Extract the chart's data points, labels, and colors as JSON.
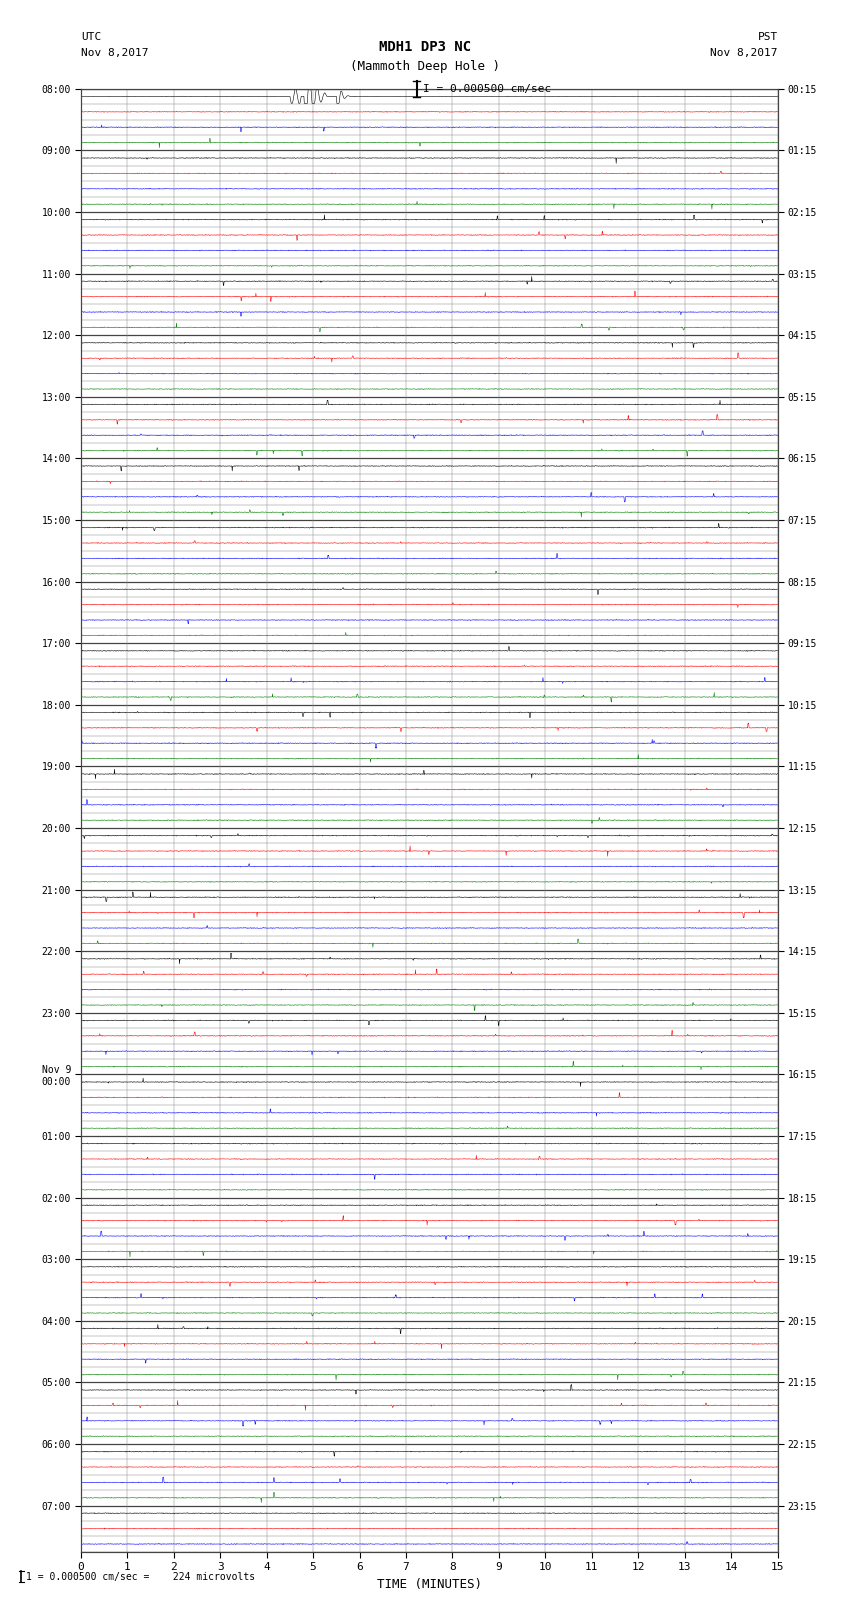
{
  "title_line1": "MDH1 DP3 NC",
  "title_line2": "(Mammoth Deep Hole )",
  "scale_label": "I = 0.000500 cm/sec",
  "utc_label": "UTC\nNov 8,2017",
  "pst_label": "PST\nNov 8,2017",
  "bottom_label": "1 = 0.000500 cm/sec =    224 microvolts",
  "xlabel": "TIME (MINUTES)",
  "n_rows": 95,
  "x_min": 0,
  "x_max": 15,
  "bg_color": "#ffffff",
  "colors": [
    "#000000",
    "#ff0000",
    "#0000ff",
    "#008000"
  ],
  "grid_color_minor": "#aaaaaa",
  "grid_color_major": "#000000",
  "left_labels": [
    "08:00",
    "09:00",
    "10:00",
    "11:00",
    "12:00",
    "13:00",
    "14:00",
    "15:00",
    "16:00",
    "17:00",
    "18:00",
    "19:00",
    "20:00",
    "21:00",
    "22:00",
    "23:00",
    "Nov 9\n00:00",
    "01:00",
    "02:00",
    "03:00",
    "04:00",
    "05:00",
    "06:00",
    "07:00"
  ],
  "right_labels": [
    "00:15",
    "01:15",
    "02:15",
    "03:15",
    "04:15",
    "05:15",
    "06:15",
    "07:15",
    "08:15",
    "09:15",
    "10:15",
    "11:15",
    "12:15",
    "13:15",
    "14:15",
    "15:15",
    "16:15",
    "17:15",
    "18:15",
    "19:15",
    "20:15",
    "21:15",
    "22:15",
    "23:15"
  ],
  "seed": 42,
  "noise_scale": 0.012,
  "spike_amplitude": 0.35,
  "big_spike_amplitude": 0.9
}
